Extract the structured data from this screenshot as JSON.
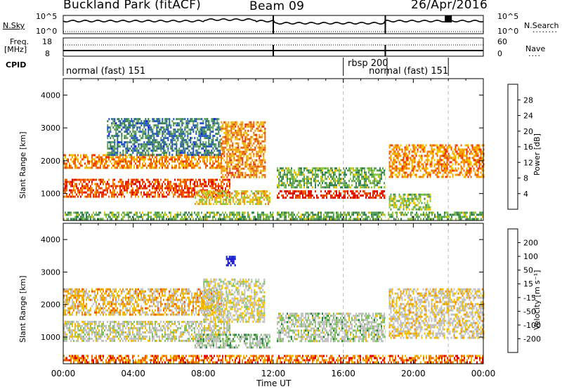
{
  "header": {
    "station": "Buckland Park (fitACF)",
    "beam": "Beam 09",
    "date": "26/Apr/2016"
  },
  "aux_panels": {
    "nsky_label": "N.Sky",
    "nsearch_label": "N.Search",
    "noise_ticks_left": [
      "10^5",
      "10^0"
    ],
    "noise_ticks_right": [
      "10^5",
      "10^0"
    ],
    "freq_label": "Freq.",
    "freq_unit": "[MHz]",
    "freq_ticks": [
      "18",
      "8"
    ],
    "nave_label": "Nave",
    "nave_ticks": [
      "60",
      "0"
    ],
    "cpid_label": "CPID",
    "cpid_segments": [
      {
        "label": "normal (fast) 151",
        "start_hour": 0,
        "end_hour": 16
      },
      {
        "label": "rbsp 200",
        "start_hour": 16,
        "end_hour": 18.5
      },
      {
        "label": "normal (fast) 151",
        "start_hour": 18.5,
        "end_hour": 22
      }
    ]
  },
  "axes": {
    "x_ticks": [
      "00:00",
      "04:00",
      "08:00",
      "12:00",
      "16:00",
      "20:00",
      "00:00"
    ],
    "x_label": "Time UT",
    "y_ticks": [
      "1000",
      "2000",
      "3000",
      "4000"
    ],
    "y_label": "Slant Range [km]"
  },
  "colorbars": {
    "power": {
      "title": "Power [dB]",
      "ticks": [
        "4",
        "8",
        "12",
        "16",
        "20",
        "24",
        "28"
      ],
      "colors": [
        "#0000ff",
        "#1a4fd0",
        "#2f7f4f",
        "#5aa05a",
        "#8dc63f",
        "#f2c500",
        "#f5a000",
        "#f06400",
        "#e83000",
        "#e00000"
      ]
    },
    "velocity": {
      "title": "Velocity [m s⁻¹]",
      "ticks": [
        "200",
        "100",
        "50",
        "15",
        "-15",
        "-50",
        "-100",
        "-200"
      ],
      "colors": [
        "#1010c0",
        "#2040d0",
        "#208040",
        "#80c060",
        "#c0c0c0",
        "#c0c0c0",
        "#f0c000",
        "#f09000",
        "#f05000",
        "#e00000"
      ]
    }
  },
  "chart_data": [
    {
      "type": "heatmap",
      "title": "Power",
      "xlabel": "Time UT",
      "ylabel": "Slant Range [km]",
      "xlim": [
        0,
        24
      ],
      "ylim": [
        180,
        4500
      ],
      "clim": [
        0,
        32
      ],
      "colorbar_label": "Power [dB]",
      "gaps_hours": [
        [
          12.0,
          12.15
        ],
        [
          18.4,
          18.55
        ]
      ],
      "bands": [
        {
          "t0": 0,
          "t1": 9.5,
          "r0": 900,
          "r1": 1450,
          "value": 26
        },
        {
          "t0": 0,
          "t1": 9.0,
          "r0": 1800,
          "r1": 2200,
          "value": 22
        },
        {
          "t0": 2.5,
          "t1": 9.0,
          "r0": 2200,
          "r1": 3300,
          "value": 8
        },
        {
          "t0": 9.0,
          "t1": 11.5,
          "r0": 1500,
          "r1": 3200,
          "value": 22
        },
        {
          "t0": 7.5,
          "t1": 11.8,
          "r0": 700,
          "r1": 1100,
          "value": 18
        },
        {
          "t0": 12.2,
          "t1": 18.4,
          "r0": 850,
          "r1": 1100,
          "value": 28
        },
        {
          "t0": 12.2,
          "t1": 18.4,
          "r0": 1200,
          "r1": 1800,
          "value": 12
        },
        {
          "t0": 18.6,
          "t1": 24,
          "r0": 1500,
          "r1": 2500,
          "value": 22
        },
        {
          "t0": 18.6,
          "t1": 21,
          "r0": 500,
          "r1": 1000,
          "value": 14
        },
        {
          "t0": 0,
          "t1": 24,
          "r0": 200,
          "r1": 450,
          "value": 12
        }
      ]
    },
    {
      "type": "heatmap",
      "title": "Velocity",
      "xlabel": "Time UT",
      "ylabel": "Slant Range [km]",
      "xlim": [
        0,
        24
      ],
      "ylim": [
        180,
        4500
      ],
      "clim": [
        -200,
        200
      ],
      "colorbar_label": "Velocity [m s⁻¹]",
      "gaps_hours": [
        [
          12.0,
          12.15
        ],
        [
          18.4,
          18.55
        ]
      ],
      "bands": [
        {
          "t0": 0,
          "t1": 9.5,
          "r0": 900,
          "r1": 1500,
          "value": 0
        },
        {
          "t0": 0,
          "t1": 9.0,
          "r0": 1700,
          "r1": 2500,
          "value": -60
        },
        {
          "t0": 8.0,
          "t1": 11.5,
          "r0": 1500,
          "r1": 2800,
          "value": -10
        },
        {
          "t0": 9.3,
          "t1": 9.8,
          "r0": 3200,
          "r1": 3500,
          "value": 200
        },
        {
          "t0": 7.5,
          "t1": 11.8,
          "r0": 700,
          "r1": 1100,
          "value": 40
        },
        {
          "t0": 12.2,
          "t1": 18.4,
          "r0": 850,
          "r1": 1750,
          "value": 20
        },
        {
          "t0": 18.6,
          "t1": 24,
          "r0": 1000,
          "r1": 2500,
          "value": -30
        },
        {
          "t0": 0,
          "t1": 24,
          "r0": 200,
          "r1": 450,
          "value": -120
        }
      ]
    }
  ]
}
